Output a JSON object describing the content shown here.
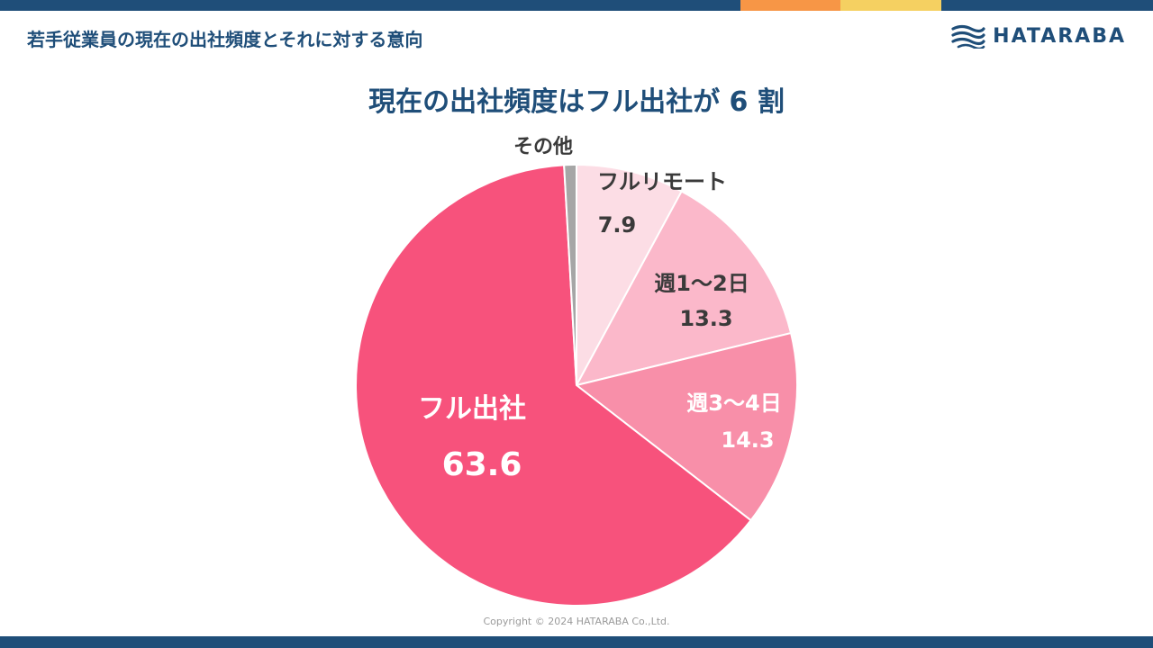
{
  "header": {
    "title": "若手従業員の現在の出社頻度とそれに対する意向"
  },
  "logo": {
    "text": "HATARABA"
  },
  "copyright": "Copyright © 2024 HATARABA Co.,Ltd.",
  "colors": {
    "brand_navy": "#1f4e79",
    "accent_orange": "#f79646",
    "accent_yellow": "#f5d061"
  },
  "chart_data": {
    "type": "pie",
    "title": "現在の出社頻度はフル出社が 6 割",
    "unit": "%",
    "slices": [
      {
        "label": "フルリモート",
        "value": 7.9,
        "color": "#fcdde5"
      },
      {
        "label": "週1～2日",
        "value": 13.3,
        "color": "#fbb8ca"
      },
      {
        "label": "週3～4日",
        "value": 14.3,
        "color": "#f88fa9"
      },
      {
        "label": "フル出社",
        "value": 63.6,
        "color": "#f7527c"
      },
      {
        "label": "その他",
        "value": 0.9,
        "color": "#a6a6a6"
      }
    ]
  }
}
